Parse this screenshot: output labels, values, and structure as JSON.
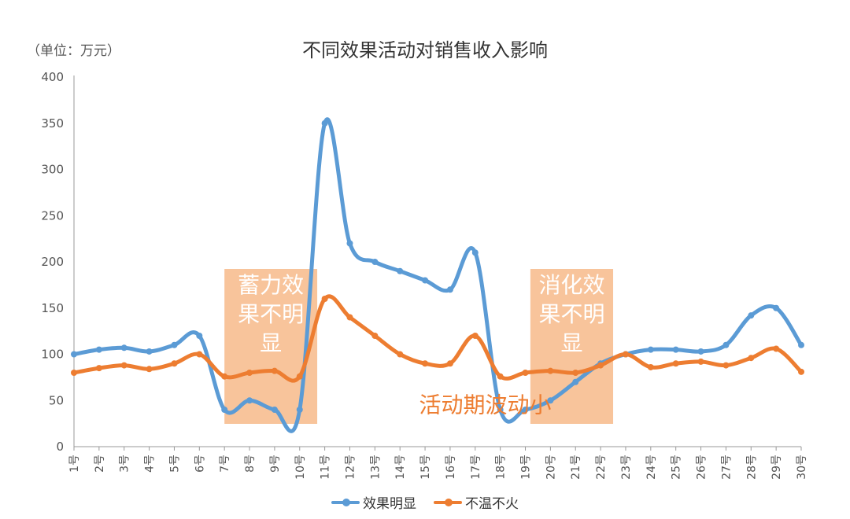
{
  "colors": {
    "series1": "#5b9bd5",
    "series2": "#ed7d31",
    "highlight_box": "#f5b07a",
    "annotation": "#ed7d31",
    "axis": "#999999"
  },
  "chart_data": {
    "type": "line",
    "title": "不同效果活动对销售收入影响",
    "unit_label": "（单位：万元）",
    "categories": [
      "1号",
      "2号",
      "3号",
      "4号",
      "5号",
      "6号",
      "7号",
      "8号",
      "9号",
      "10号",
      "11号",
      "12号",
      "13号",
      "14号",
      "15号",
      "16号",
      "17号",
      "18号",
      "19号",
      "20号",
      "21号",
      "22号",
      "23号",
      "24号",
      "25号",
      "26号",
      "27号",
      "28号",
      "29号",
      "30号"
    ],
    "ylim": [
      0,
      400
    ],
    "yticks": [
      0,
      50,
      100,
      150,
      200,
      250,
      300,
      350,
      400
    ],
    "grid": false,
    "legend_position": "bottom",
    "series": [
      {
        "name": "效果明显",
        "color": "#5b9bd5",
        "values": [
          100,
          105,
          107,
          103,
          110,
          120,
          40,
          50,
          40,
          40,
          350,
          220,
          200,
          190,
          180,
          170,
          210,
          40,
          40,
          50,
          70,
          90,
          100,
          105,
          105,
          103,
          110,
          142,
          150,
          110
        ]
      },
      {
        "name": "不温不火",
        "color": "#ed7d31",
        "values": [
          80,
          85,
          88,
          84,
          90,
          100,
          76,
          80,
          82,
          76,
          160,
          140,
          120,
          100,
          90,
          90,
          120,
          76,
          80,
          82,
          80,
          88,
          100,
          86,
          90,
          92,
          88,
          96,
          106,
          81
        ]
      }
    ],
    "highlight_boxes": [
      {
        "label_lines": [
          "蓄力效",
          "果不明",
          "显"
        ],
        "x_start": 7,
        "x_end": 10.7
      },
      {
        "label_lines": [
          "消化效",
          "果不明",
          "显"
        ],
        "x_start": 19.2,
        "x_end": 22.5
      }
    ],
    "annotation": {
      "text": "活动期波动小",
      "x": 17.4,
      "y": 37
    }
  }
}
